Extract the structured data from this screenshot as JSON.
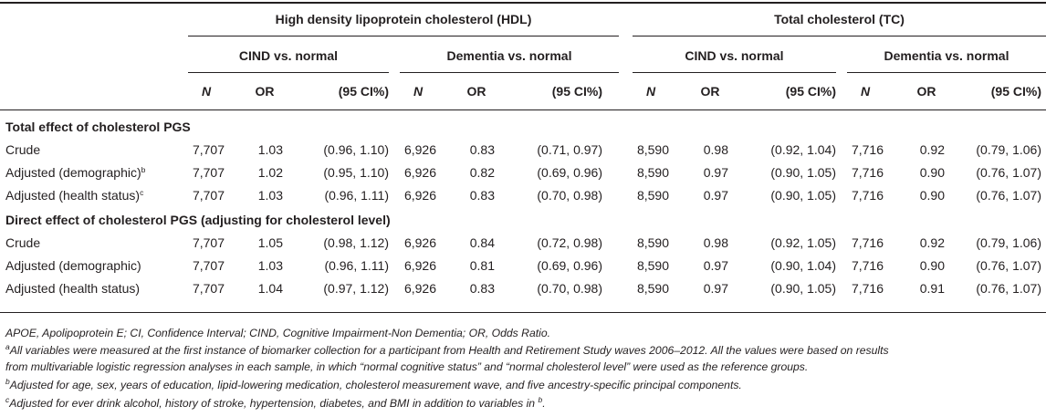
{
  "groups": [
    {
      "label": "High density lipoprotein cholesterol (HDL)"
    },
    {
      "label": "Total cholesterol (TC)"
    }
  ],
  "comparisons": [
    "CIND vs. normal",
    "Dementia vs. normal",
    "CIND vs. normal",
    "Dementia vs. normal"
  ],
  "col_headers": {
    "n": "N",
    "or": "OR",
    "ci": "(95 CI%)"
  },
  "sections": [
    {
      "title": "Total effect of cholesterol PGS",
      "rows": [
        {
          "label": "Crude",
          "sup": "",
          "cells": [
            [
              "7,707",
              "1.03",
              "(0.96, 1.10)"
            ],
            [
              "6,926",
              "0.83",
              "(0.71, 0.97)"
            ],
            [
              "8,590",
              "0.98",
              "(0.92, 1.04)"
            ],
            [
              "7,716",
              "0.92",
              "(0.79, 1.06)"
            ]
          ]
        },
        {
          "label": "Adjusted (demographic)",
          "sup": "b",
          "cells": [
            [
              "7,707",
              "1.02",
              "(0.95, 1.10)"
            ],
            [
              "6,926",
              "0.82",
              "(0.69, 0.96)"
            ],
            [
              "8,590",
              "0.97",
              "(0.90, 1.05)"
            ],
            [
              "7,716",
              "0.90",
              "(0.76, 1.07)"
            ]
          ]
        },
        {
          "label": "Adjusted (health status)",
          "sup": "c",
          "cells": [
            [
              "7,707",
              "1.03",
              "(0.96, 1.11)"
            ],
            [
              "6,926",
              "0.83",
              "(0.70, 0.98)"
            ],
            [
              "8,590",
              "0.97",
              "(0.90, 1.05)"
            ],
            [
              "7,716",
              "0.90",
              "(0.76, 1.07)"
            ]
          ]
        }
      ]
    },
    {
      "title": "Direct effect of cholesterol PGS (adjusting for cholesterol level)",
      "rows": [
        {
          "label": "Crude",
          "sup": "",
          "cells": [
            [
              "7,707",
              "1.05",
              "(0.98, 1.12)"
            ],
            [
              "6,926",
              "0.84",
              "(0.72, 0.98)"
            ],
            [
              "8,590",
              "0.98",
              "(0.92, 1.05)"
            ],
            [
              "7,716",
              "0.92",
              "(0.79, 1.06)"
            ]
          ]
        },
        {
          "label": "Adjusted (demographic)",
          "sup": "",
          "cells": [
            [
              "7,707",
              "1.03",
              "(0.96, 1.11)"
            ],
            [
              "6,926",
              "0.81",
              "(0.69, 0.96)"
            ],
            [
              "8,590",
              "0.97",
              "(0.90, 1.04)"
            ],
            [
              "7,716",
              "0.90",
              "(0.76, 1.07)"
            ]
          ]
        },
        {
          "label": "Adjusted (health status)",
          "sup": "",
          "cells": [
            [
              "7,707",
              "1.04",
              "(0.97, 1.12)"
            ],
            [
              "6,926",
              "0.83",
              "(0.70, 0.98)"
            ],
            [
              "8,590",
              "0.97",
              "(0.90, 1.05)"
            ],
            [
              "7,716",
              "0.91",
              "(0.76, 1.07)"
            ]
          ]
        }
      ]
    }
  ],
  "footnotes": {
    "abbreviations": "APOE, Apolipoprotein E; CI, Confidence Interval; CIND, Cognitive Impairment-Non Dementia; OR, Odds Ratio.",
    "a": {
      "mark": "a",
      "line1": "All variables were measured at the first instance of biomarker collection for a participant from Health and Retirement Study waves 2006–2012. All the values were based on results",
      "line2": "from multivariable logistic regression analyses in each sample, in which “normal cognitive status” and “normal cholesterol level” were used as the reference groups."
    },
    "b": {
      "mark": "b",
      "text": "Adjusted for age, sex, years of education, lipid-lowering medication, cholesterol measurement wave, and five ancestry-specific principal components."
    },
    "c": {
      "mark": "c",
      "text": "Adjusted for ever drink alcohol, history of stroke, hypertension, diabetes, and BMI in addition to variables in ",
      "ref": "b",
      "end": "."
    }
  }
}
